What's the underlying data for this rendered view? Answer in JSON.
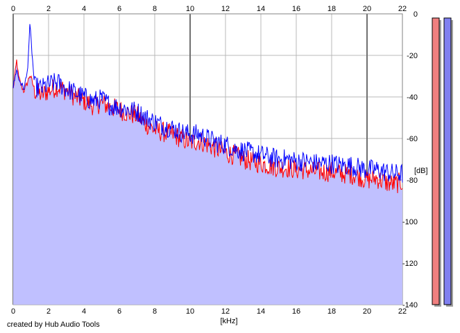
{
  "chart_data": {
    "type": "line",
    "title": "",
    "xlabel": "[kHz]",
    "ylabel": "[dB]",
    "xlim": [
      0,
      22
    ],
    "ylim": [
      -140,
      0
    ],
    "x_ticks": [
      "0",
      "2",
      "4",
      "6",
      "8",
      "10",
      "12",
      "14",
      "16",
      "18",
      "20",
      "22"
    ],
    "x_tick_values": [
      0,
      2,
      4,
      6,
      8,
      10,
      12,
      14,
      16,
      18,
      20,
      22
    ],
    "y_ticks": [
      "0",
      "-20",
      "-40",
      "-60",
      "-80",
      "-100",
      "-120",
      "-140"
    ],
    "y_tick_values": [
      0,
      -20,
      -40,
      -60,
      -80,
      -100,
      -120,
      -140
    ],
    "grid": true,
    "major_x_gridlines": [
      10,
      20
    ],
    "fill_color": "#c0c0ff",
    "series": [
      {
        "color": "#ff0000",
        "x": [
          0,
          0.2,
          0.3,
          0.45,
          0.6,
          0.8,
          0.95,
          1.2,
          1.6,
          2.0,
          2.5,
          3.0,
          3.5,
          4.0,
          4.5,
          5.0,
          5.5,
          6.0,
          6.5,
          7.0,
          7.5,
          8.0,
          8.5,
          9.0,
          9.5,
          10.0,
          10.5,
          11.0,
          11.5,
          12.0,
          12.5,
          13.0,
          13.5,
          14.0,
          14.5,
          15.0,
          15.5,
          16.0,
          16.5,
          17.0,
          17.5,
          18.0,
          18.5,
          19.0,
          19.5,
          20.0,
          20.5,
          21.0,
          21.5,
          22.0
        ],
        "values": [
          -36,
          -22,
          -30,
          -34,
          -37,
          -33,
          -29,
          -36,
          -38,
          -36,
          -34,
          -36,
          -39,
          -41,
          -43,
          -42,
          -44,
          -45,
          -47,
          -48,
          -52,
          -55,
          -56,
          -57,
          -59,
          -61,
          -60,
          -62,
          -64,
          -66,
          -67,
          -69,
          -70,
          -71,
          -72,
          -73,
          -73,
          -74,
          -74,
          -75,
          -75,
          -75,
          -76,
          -76,
          -77,
          -79,
          -78,
          -80,
          -81,
          -80
        ]
      },
      {
        "color": "#0000ff",
        "x": [
          0,
          0.2,
          0.3,
          0.45,
          0.6,
          0.8,
          0.95,
          1.2,
          1.6,
          2.0,
          2.5,
          3.0,
          3.5,
          4.0,
          4.5,
          5.0,
          5.5,
          6.0,
          6.5,
          7.0,
          7.5,
          8.0,
          8.5,
          9.0,
          9.5,
          10.0,
          10.5,
          11.0,
          11.5,
          12.0,
          12.5,
          13.0,
          13.5,
          14.0,
          14.5,
          15.0,
          15.5,
          16.0,
          16.5,
          17.0,
          17.5,
          18.0,
          18.5,
          19.0,
          19.5,
          20.0,
          20.5,
          21.0,
          21.5,
          22.0
        ],
        "values": [
          -35,
          -26,
          -31,
          -33,
          -36,
          -28,
          -5,
          -34,
          -35,
          -33,
          -32,
          -35,
          -37,
          -39,
          -41,
          -40,
          -43,
          -44,
          -45,
          -46,
          -49,
          -51,
          -53,
          -54,
          -56,
          -57,
          -57,
          -59,
          -61,
          -62,
          -64,
          -65,
          -66,
          -67,
          -68,
          -69,
          -69,
          -70,
          -70,
          -71,
          -71,
          -71,
          -72,
          -72,
          -73,
          -74,
          -74,
          -75,
          -76,
          -76
        ]
      }
    ]
  },
  "level_meters": [
    {
      "level": 1.0,
      "color": "#f08080"
    },
    {
      "level": 1.0,
      "color": "#8080f0"
    }
  ],
  "credit": "created by Hub Audio Tools"
}
